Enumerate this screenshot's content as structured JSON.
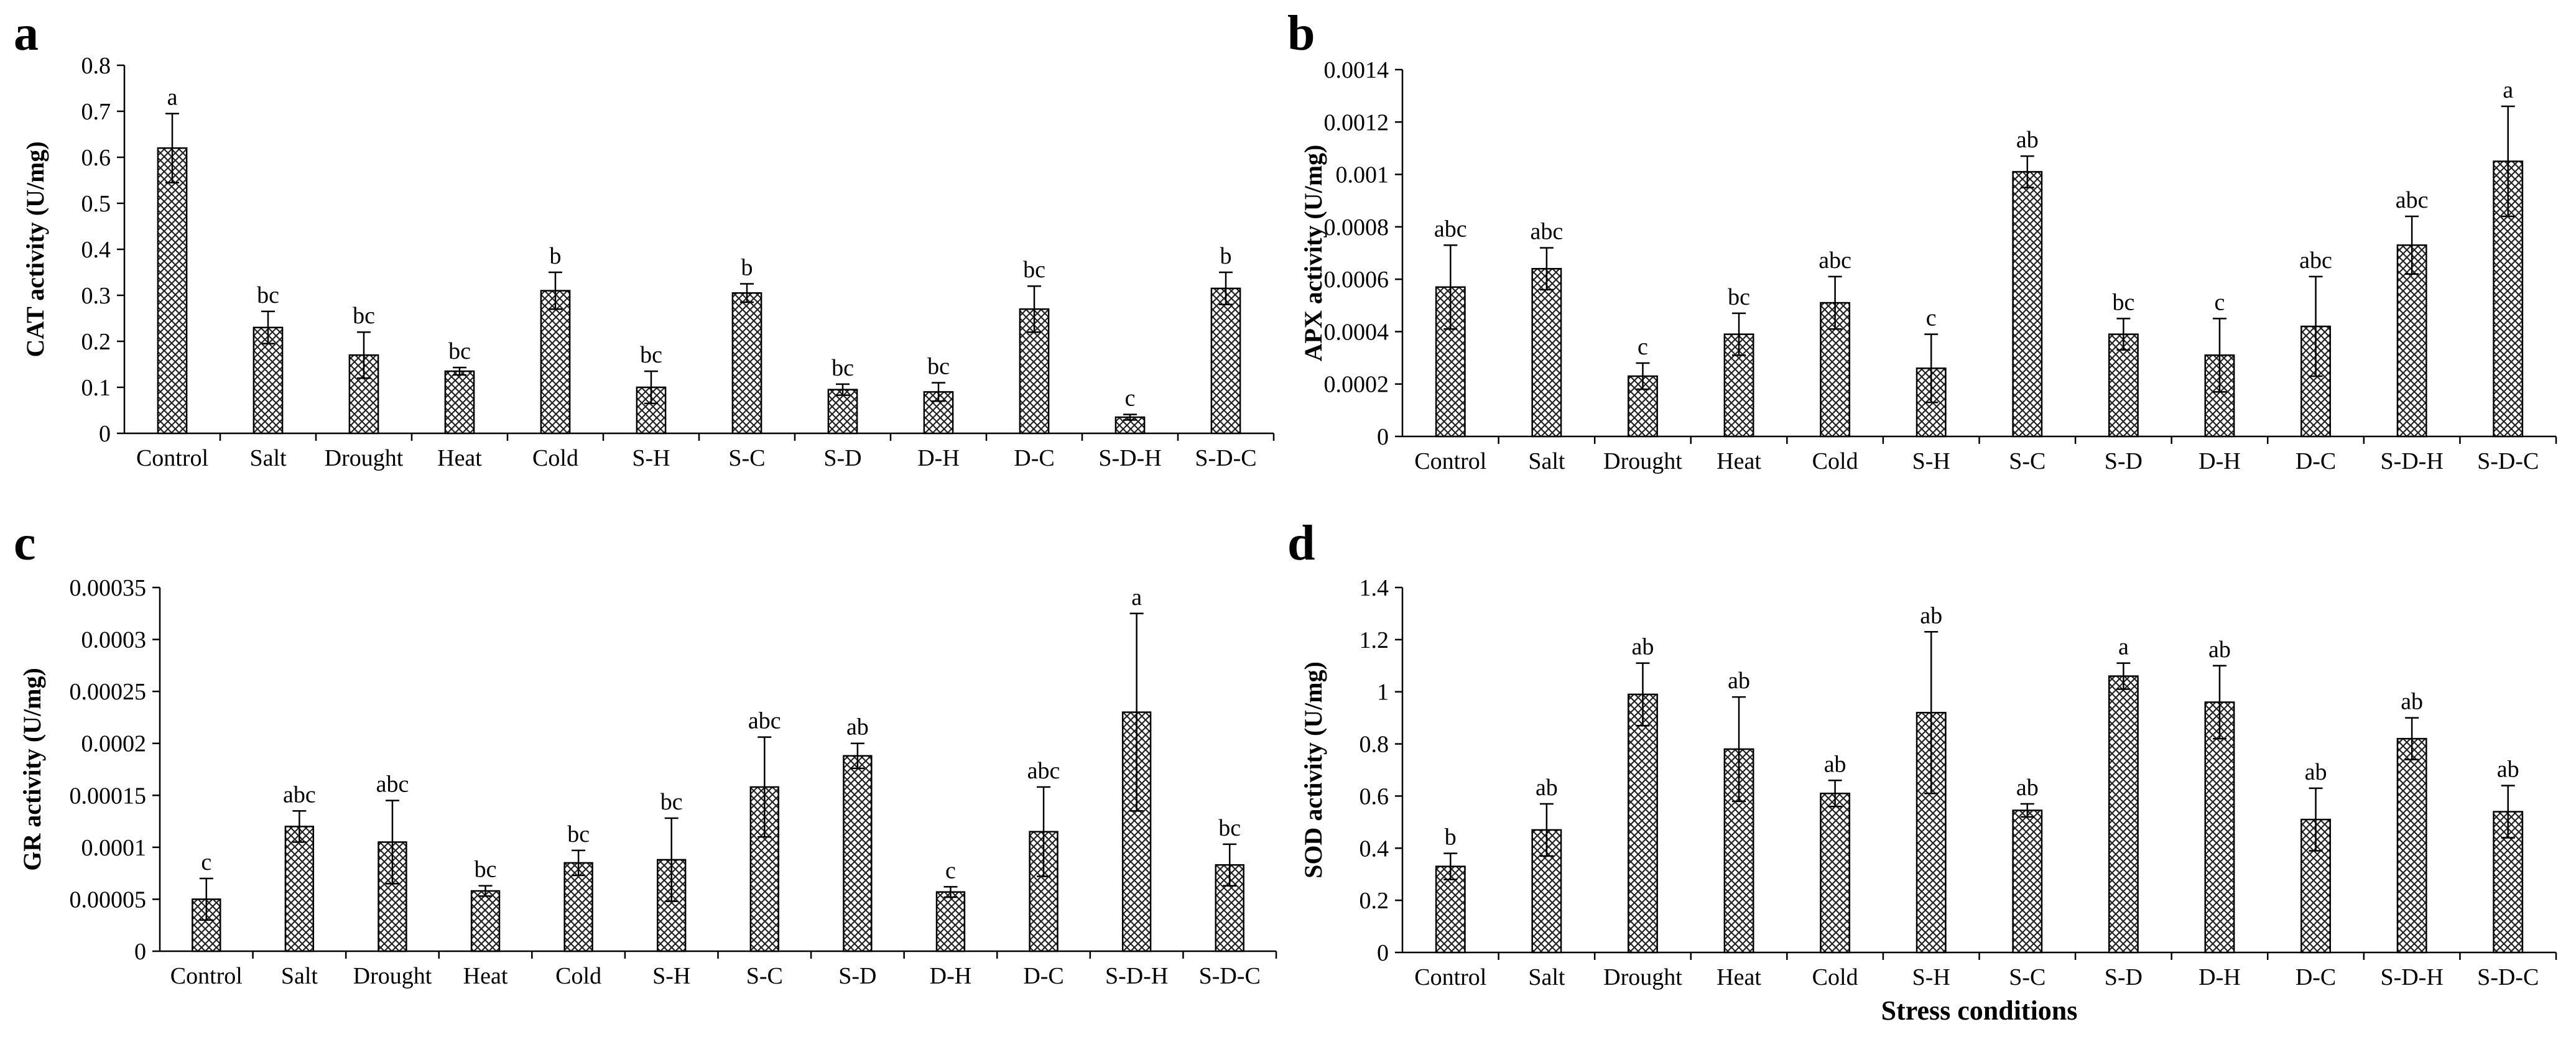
{
  "chart_data": [
    {
      "type": "bar",
      "panel": "a",
      "categories": [
        "Control",
        "Salt",
        "Drought",
        "Heat",
        "Cold",
        "S-H",
        "S-C",
        "S-D",
        "D-H",
        "D-C",
        "S-D-H",
        "S-D-C"
      ],
      "values": [
        0.62,
        0.23,
        0.17,
        0.135,
        0.31,
        0.1,
        0.305,
        0.095,
        0.09,
        0.27,
        0.035,
        0.315
      ],
      "errors": [
        0.075,
        0.035,
        0.05,
        0.008,
        0.04,
        0.035,
        0.02,
        0.012,
        0.02,
        0.05,
        0.006,
        0.035
      ],
      "letters": [
        "a",
        "bc",
        "bc",
        "bc",
        "b",
        "bc",
        "b",
        "bc",
        "bc",
        "bc",
        "c",
        "b"
      ],
      "ylabel": "CAT activity (U/mg)",
      "xlabel": "",
      "ylim": [
        0,
        0.8
      ],
      "yticks": [
        "0",
        "0.1",
        "0.2",
        "0.3",
        "0.4",
        "0.5",
        "0.6",
        "0.7",
        "0.8"
      ]
    },
    {
      "type": "bar",
      "panel": "b",
      "categories": [
        "Control",
        "Salt",
        "Drought",
        "Heat",
        "Cold",
        "S-H",
        "S-C",
        "S-D",
        "D-H",
        "D-C",
        "S-D-H",
        "S-D-C"
      ],
      "values": [
        0.00057,
        0.00064,
        0.00023,
        0.00039,
        0.00051,
        0.00026,
        0.00101,
        0.00039,
        0.00031,
        0.00042,
        0.00073,
        0.00105
      ],
      "errors": [
        0.00016,
        8e-05,
        5e-05,
        8e-05,
        0.0001,
        0.00013,
        6e-05,
        6e-05,
        0.00014,
        0.00019,
        0.00011,
        0.00021
      ],
      "letters": [
        "abc",
        "abc",
        "c",
        "bc",
        "abc",
        "c",
        "ab",
        "bc",
        "c",
        "abc",
        "abc",
        "a"
      ],
      "ylabel": "APX activity (U/mg)",
      "xlabel": "",
      "ylim": [
        0,
        0.0014
      ],
      "yticks": [
        "0",
        "0.0002",
        "0.0004",
        "0.0006",
        "0.0008",
        "0.001",
        "0.0012",
        "0.0014"
      ]
    },
    {
      "type": "bar",
      "panel": "c",
      "categories": [
        "Control",
        "Salt",
        "Drought",
        "Heat",
        "Cold",
        "S-H",
        "S-C",
        "S-D",
        "D-H",
        "D-C",
        "S-D-H",
        "S-D-C"
      ],
      "values": [
        5e-05,
        0.00012,
        0.000105,
        5.8e-05,
        8.5e-05,
        8.8e-05,
        0.000158,
        0.000188,
        5.7e-05,
        0.000115,
        0.00023,
        8.3e-05
      ],
      "errors": [
        2e-05,
        1.5e-05,
        4e-05,
        5e-06,
        1.2e-05,
        4e-05,
        4.8e-05,
        1.2e-05,
        5e-06,
        4.3e-05,
        9.5e-05,
        2e-05
      ],
      "letters": [
        "c",
        "abc",
        "abc",
        "bc",
        "bc",
        "bc",
        "abc",
        "ab",
        "c",
        "abc",
        "a",
        "bc"
      ],
      "ylabel": "GR activity (U/mg)",
      "xlabel": "",
      "ylim": [
        0,
        0.00035
      ],
      "yticks": [
        "0",
        "0.00005",
        "0.0001",
        "0.00015",
        "0.0002",
        "0.00025",
        "0.0003",
        "0.00035"
      ]
    },
    {
      "type": "bar",
      "panel": "d",
      "categories": [
        "Control",
        "Salt",
        "Drought",
        "Heat",
        "Cold",
        "S-H",
        "S-C",
        "S-D",
        "D-H",
        "D-C",
        "S-D-H",
        "S-D-C"
      ],
      "values": [
        0.33,
        0.47,
        0.99,
        0.78,
        0.61,
        0.92,
        0.545,
        1.06,
        0.96,
        0.51,
        0.82,
        0.54
      ],
      "errors": [
        0.05,
        0.1,
        0.12,
        0.2,
        0.05,
        0.31,
        0.025,
        0.05,
        0.14,
        0.12,
        0.08,
        0.1
      ],
      "letters": [
        "b",
        "ab",
        "ab",
        "ab",
        "ab",
        "ab",
        "ab",
        "a",
        "ab",
        "ab",
        "ab",
        "ab"
      ],
      "ylabel": "SOD activity (U/mg)",
      "xlabel": "Stress conditions",
      "ylim": [
        0,
        1.4
      ],
      "yticks": [
        "0",
        "0.2",
        "0.4",
        "0.6",
        "0.8",
        "1",
        "1.2",
        "1.4"
      ]
    }
  ],
  "colors": {
    "axis": "#000000",
    "bar_fill_bg": "#ffffff",
    "bar_pattern": "#222222"
  }
}
